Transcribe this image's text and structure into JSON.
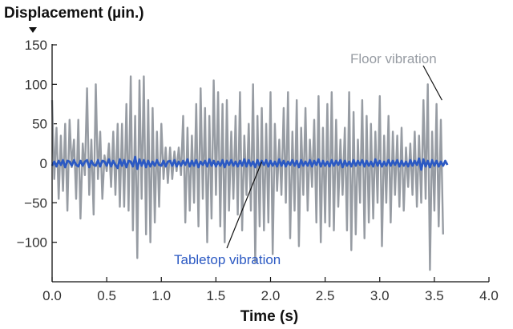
{
  "chart_data": {
    "type": "line",
    "ylabel": "Displacement (µin.)",
    "xlabel": "Time (s)",
    "xlim": [
      0,
      4.0
    ],
    "ylim": [
      -150,
      150
    ],
    "x_ticks": [
      "0.0",
      "0.5",
      "1.0",
      "1.5",
      "2.0",
      "2.5",
      "3.0",
      "3.5",
      "4.0"
    ],
    "y_ticks": [
      "150",
      "100",
      "50",
      "0",
      "−50",
      "−100"
    ],
    "grid": false,
    "legend": "none",
    "series": [
      {
        "name": "Floor vibration",
        "color": "#979ca3",
        "x_start": 0.0,
        "x_step": 0.02,
        "values": [
          80,
          -20,
          45,
          -45,
          35,
          -35,
          50,
          -60,
          55,
          -5,
          30,
          -45,
          55,
          -70,
          25,
          -15,
          95,
          -40,
          30,
          -65,
          100,
          -20,
          40,
          -45,
          10,
          -10,
          25,
          -30,
          40,
          -40,
          50,
          -55,
          50,
          -55,
          75,
          -60,
          110,
          -85,
          60,
          -120,
          105,
          -45,
          110,
          -90,
          80,
          -100,
          70,
          -75,
          40,
          -55,
          50,
          -20,
          20,
          -25,
          20,
          -20,
          15,
          -10,
          20,
          -15,
          60,
          -75,
          45,
          -60,
          35,
          -50,
          75,
          -80,
          95,
          -45,
          70,
          -100,
          60,
          -70,
          105,
          -40,
          90,
          -80,
          75,
          -100,
          80,
          -60,
          40,
          -45,
          60,
          -65,
          90,
          -85,
          35,
          -40,
          50,
          -60,
          100,
          -125,
          60,
          -80,
          70,
          -85,
          50,
          -75,
          90,
          -115,
          50,
          -35,
          30,
          -40,
          70,
          -50,
          90,
          -95,
          40,
          -60,
          80,
          -105,
          45,
          -40,
          70,
          -60,
          30,
          -30,
          55,
          -75,
          85,
          -100,
          45,
          -75,
          75,
          -80,
          90,
          -85,
          55,
          -55,
          30,
          -40,
          45,
          -85,
          90,
          -110,
          65,
          -90,
          30,
          -50,
          80,
          -95,
          60,
          -75,
          50,
          -70,
          40,
          -50,
          85,
          -105,
          35,
          -50,
          60,
          -75,
          40,
          -40,
          35,
          -55,
          45,
          -60,
          20,
          -30,
          25,
          -40,
          40,
          -55,
          35,
          -50,
          80,
          -45,
          100,
          -135,
          40,
          -60,
          75,
          -80,
          55,
          -90
        ]
      },
      {
        "name": "Tabletop vibration",
        "color": "#2b59c3",
        "x_start": 0.0,
        "x_step": 0.02,
        "values": [
          -3,
          2,
          -4,
          3,
          -2,
          4,
          -5,
          3,
          2,
          -3,
          4,
          -2,
          -4,
          3,
          -3,
          2,
          4,
          -5,
          3,
          -2,
          -3,
          4,
          -4,
          3,
          2,
          -3,
          5,
          -4,
          3,
          -2,
          -6,
          5,
          -3,
          4,
          -5,
          3,
          2,
          -4,
          8,
          -7,
          5,
          -3,
          4,
          -5,
          3,
          -4,
          2,
          -3,
          4,
          -2,
          -3,
          3,
          -4,
          2,
          3,
          -3,
          4,
          -4,
          2,
          -3,
          3,
          -2,
          5,
          -4,
          3,
          -3,
          4,
          -5,
          2,
          -2,
          3,
          -4,
          5,
          -3,
          3,
          -4,
          2,
          -3,
          4,
          -5,
          3,
          -2,
          4,
          -3,
          2,
          -4,
          3,
          -3,
          5,
          -4,
          4,
          -3,
          2,
          -5,
          4,
          -3,
          3,
          -2,
          4,
          -4,
          3,
          -3,
          2,
          -4,
          5,
          -3,
          3,
          -4,
          2,
          -2,
          4,
          -3,
          3,
          -5,
          4,
          -3,
          2,
          -3,
          4,
          -4,
          3,
          -2,
          5,
          -4,
          3,
          -3,
          2,
          -4,
          4,
          -3,
          3,
          -2,
          4,
          -5,
          3,
          -3,
          2,
          -4,
          4,
          -3,
          3,
          -2,
          4,
          -4,
          3,
          -3,
          2,
          -4,
          5,
          -3,
          3,
          -4,
          2,
          -3,
          4,
          -3,
          3,
          -2,
          4,
          -4,
          3,
          -3,
          2,
          -4,
          4,
          -3,
          3,
          -2,
          6,
          -8,
          5,
          -4,
          3,
          -5,
          4,
          -3,
          3,
          -4,
          2,
          -3,
          3,
          -2
        ]
      }
    ],
    "annotations": [
      {
        "text": "Floor vibration",
        "series": 0,
        "target_x": 3.57,
        "target_y": 80,
        "color": "#979ca3"
      },
      {
        "text": "Tabletop vibration",
        "series": 1,
        "target_x": 1.92,
        "target_y": 2,
        "color": "#2b59c3"
      }
    ]
  }
}
